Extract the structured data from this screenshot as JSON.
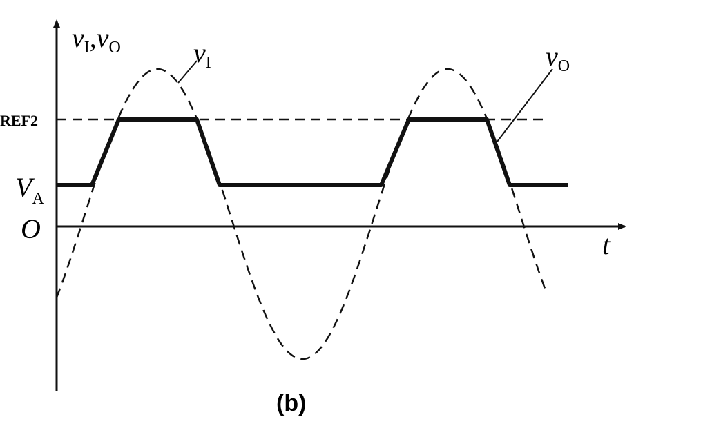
{
  "y_axis_label": {
    "parts": [
      "v",
      "I",
      ",",
      "v",
      "O"
    ]
  },
  "x_axis_label": "t",
  "origin_label": "O",
  "level_labels": {
    "va": {
      "main": "V",
      "sub": "A"
    },
    "vref2": "REF2"
  },
  "curve_labels": {
    "input": {
      "main": "v",
      "sub": "I"
    },
    "output": {
      "main": "v",
      "sub": "O"
    }
  },
  "caption": "(b)"
}
